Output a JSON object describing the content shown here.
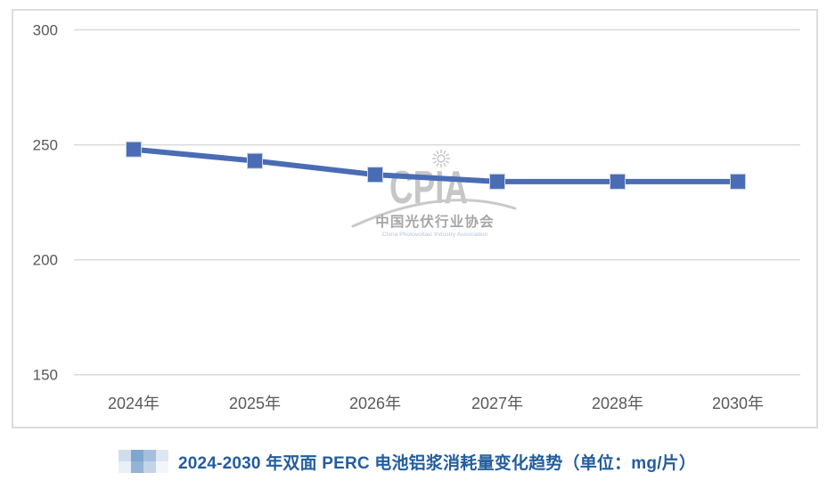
{
  "chart_data": {
    "type": "line",
    "title": "2024-2030 年双面 PERC 电池铝浆消耗量变化趋势（单位：mg/片）",
    "categories": [
      "2024年",
      "2025年",
      "2026年",
      "2027年",
      "2028年",
      "2030年"
    ],
    "values": [
      248,
      243,
      237,
      234,
      234,
      234
    ],
    "xlabel": "",
    "ylabel": "",
    "unit": "mg/片",
    "ylim": [
      150,
      300
    ],
    "yticks": [
      300,
      250,
      200,
      150
    ],
    "grid": true,
    "legend": "none",
    "line_color": "#4a6cb4",
    "marker": "square"
  },
  "watermark": {
    "acronym": "CPIA",
    "org_cn": "中国光伏行业协会",
    "org_en": "China Photovoltaic Industry Association"
  },
  "caption": {
    "text": "2024-2030 年双面 PERC 电池铝浆消耗量变化趋势（单位：mg/片）",
    "color": "#245d9f",
    "mosaic_colors": [
      "#cfdeed",
      "#7fa6cf",
      "#a5c0dc",
      "#dde7f1",
      "#e9f0f7",
      "#94b3d6",
      "#c3d4e7",
      "#f2f6fa"
    ]
  },
  "style": {
    "grid_color": "#d9d9d9",
    "border_color": "#dcdcdc",
    "axis_label_color": "#595959",
    "marker_stroke": "#c8d2ea",
    "watermark_letters": "#c6c6c6",
    "watermark_cn": "#a6a6a6",
    "watermark_en": "#b6c4dd",
    "watermark_arc": "#c9c9c9"
  }
}
